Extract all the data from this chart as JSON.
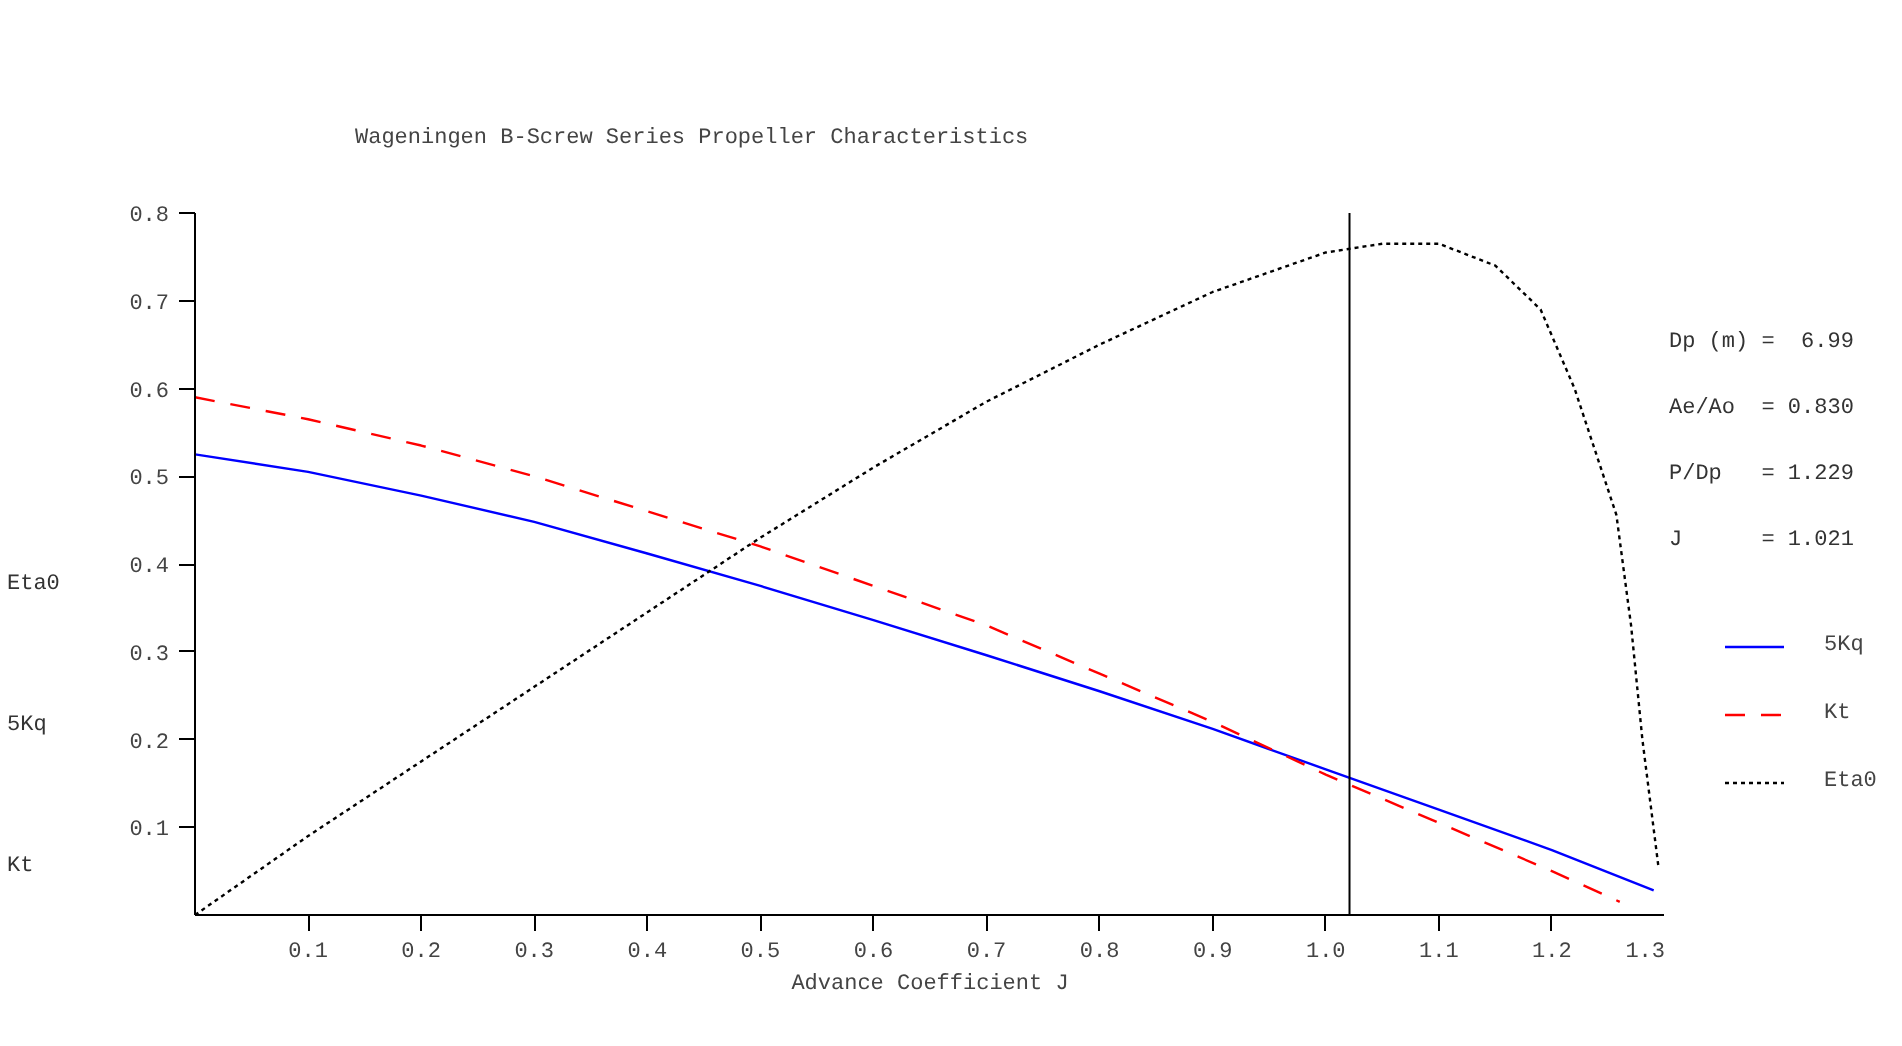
{
  "chart_data": {
    "type": "line",
    "title": "Wageningen B-Screw Series Propeller Characteristics",
    "xlabel": "Advance Coefficient J",
    "x": [
      0,
      0.1,
      0.2,
      0.3,
      0.4,
      0.5,
      0.6,
      0.7,
      0.8,
      0.9,
      1.0,
      1.1,
      1.2,
      1.29
    ],
    "series": [
      {
        "name": "5Kq",
        "color": "#0000ff",
        "line_style": "solid",
        "values": [
          0.525,
          0.505,
          0.478,
          0.448,
          0.412,
          0.375,
          0.336,
          0.296,
          0.255,
          0.212,
          0.166,
          0.12,
          0.074,
          0.028
        ]
      },
      {
        "name": "Kt",
        "color": "#ff0000",
        "line_style": "dashed",
        "x": [
          0,
          0.1,
          0.2,
          0.3,
          0.4,
          0.5,
          0.6,
          0.7,
          0.8,
          0.9,
          1.0,
          1.1,
          1.2,
          1.26
        ],
        "values": [
          0.59,
          0.565,
          0.535,
          0.5,
          0.46,
          0.42,
          0.375,
          0.33,
          0.275,
          0.22,
          0.16,
          0.105,
          0.05,
          0.015
        ]
      },
      {
        "name": "Eta0",
        "color": "#000000",
        "line_style": "dotted",
        "x": [
          0,
          0.1,
          0.2,
          0.3,
          0.4,
          0.5,
          0.6,
          0.7,
          0.8,
          0.9,
          1.0,
          1.05,
          1.1,
          1.15,
          1.19,
          1.22,
          1.257,
          1.27,
          1.28,
          1.294
        ],
        "values": [
          0,
          0.09,
          0.175,
          0.26,
          0.345,
          0.43,
          0.51,
          0.585,
          0.65,
          0.71,
          0.755,
          0.765,
          0.765,
          0.74,
          0.69,
          0.6,
          0.456,
          0.33,
          0.2,
          0.057
        ]
      }
    ],
    "xlim": [
      0,
      1.3
    ],
    "ylim": [
      0,
      0.8
    ],
    "xticks": [
      0.1,
      0.2,
      0.3,
      0.4,
      0.5,
      0.6,
      0.7,
      0.8,
      0.9,
      {
        "value": 1.0,
        "label": "1.0"
      },
      1.1,
      1.2,
      1.3
    ],
    "yticks": [
      0.1,
      0.2,
      0.3,
      0.4,
      0.5,
      0.6,
      0.7,
      0.8
    ],
    "ref_lines": [
      {
        "axis": "x",
        "value": 1.021,
        "label": null,
        "color": "#000000"
      }
    ],
    "annotations": [
      "Eta0",
      "5Kq",
      "Kt",
      "Dp (m) =  6.99",
      "Ae/Ao  = 0.830",
      "P/Dp   = 1.229",
      "J      = 1.021"
    ],
    "legend": "right",
    "grid": false,
    "marker": "none"
  }
}
